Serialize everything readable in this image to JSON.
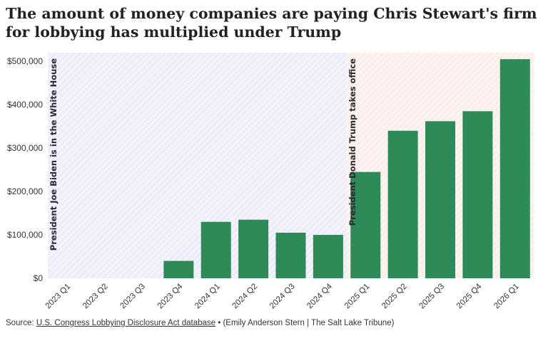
{
  "title": "The amount of money companies are paying Chris Stewart's firm for lobbying has multiplied under Trump",
  "source": {
    "prefix": "Source: ",
    "link_text": "U.S. Congress Lobbying Disclosure Act database",
    "suffix": " • (Emily Anderson Stern | The Salt Lake Tribune)"
  },
  "colors": {
    "bar": "#2e8b57",
    "biden_region": "#eeeefa",
    "trump_region": "#fdf0ec",
    "text": "#333333"
  },
  "chart_data": {
    "type": "bar",
    "categories": [
      "2023 Q1",
      "2023 Q2",
      "2023 Q3",
      "2023 Q4",
      "2024 Q1",
      "2024 Q2",
      "2024 Q3",
      "2024 Q4",
      "2025 Q1",
      "2025 Q2",
      "2025 Q3",
      "2025 Q4",
      "2026 Q1"
    ],
    "values": [
      0,
      0,
      0,
      40000,
      130000,
      135000,
      105000,
      100000,
      245000,
      340000,
      362000,
      385000,
      505000
    ],
    "ylim": [
      0,
      520000
    ],
    "yticks": [
      0,
      100000,
      200000,
      300000,
      400000,
      500000
    ],
    "ytick_labels": [
      "$0",
      "$100,000",
      "$200,000",
      "$300,000",
      "$400,000",
      "$500,000"
    ],
    "grid": false,
    "annotations": [
      {
        "text": "President Joe Biden is in the White House",
        "region_start": 0,
        "region_end": 8
      },
      {
        "text": "President Donald Trump takes office",
        "region_start": 8,
        "region_end": 13
      }
    ]
  }
}
